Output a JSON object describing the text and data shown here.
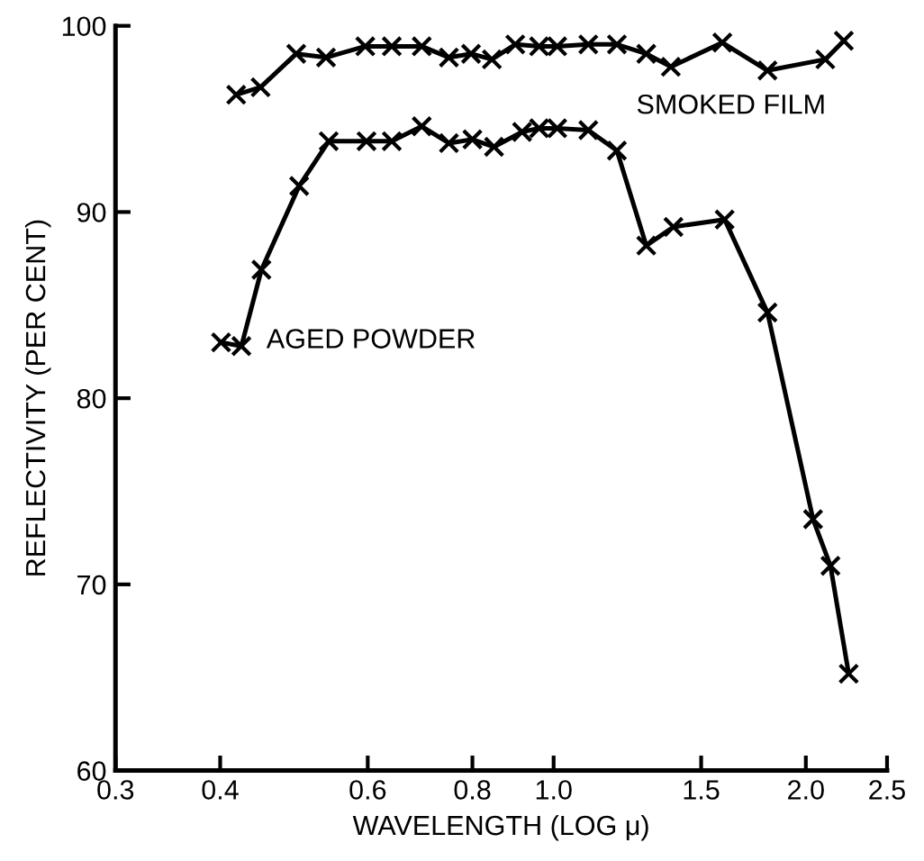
{
  "chart_data": {
    "type": "line",
    "xlabel": "WAVELENGTH (LOG μ)",
    "ylabel": "REFLECTIVITY (PER CENT)",
    "log": "x",
    "xlim": [
      0.3,
      2.5
    ],
    "ylim": [
      60,
      100
    ],
    "xticks": [
      0.3,
      0.4,
      0.6,
      0.8,
      {
        "value": 1.0,
        "label": "1.0"
      },
      1.5,
      {
        "value": 2.0,
        "label": "2.0"
      },
      2.5
    ],
    "yticks": [
      60,
      70,
      80,
      90,
      100
    ],
    "grid": false,
    "legend": false,
    "marker": "cross",
    "line_style": "solid",
    "series": [
      {
        "name": "SMOKED FILM",
        "color": "#000000",
        "x": [
          0.418,
          0.447,
          0.493,
          0.535,
          0.596,
          0.641,
          0.696,
          0.75,
          0.797,
          0.844,
          0.9,
          0.961,
          1.01,
          1.1,
          1.19,
          1.29,
          1.38,
          1.59,
          1.8,
          2.11,
          2.22
        ],
        "values": [
          96.3,
          96.7,
          98.5,
          98.3,
          98.9,
          98.9,
          98.9,
          98.3,
          98.5,
          98.2,
          99.0,
          98.9,
          98.9,
          99.0,
          99.0,
          98.5,
          97.8,
          99.1,
          97.6,
          98.2,
          99.2
        ]
      },
      {
        "name": "AGED POWDER",
        "color": "#000000",
        "x": [
          0.401,
          0.424,
          0.448,
          0.497,
          0.539,
          0.598,
          0.641,
          0.696,
          0.75,
          0.8,
          0.849,
          0.917,
          0.961,
          1.01,
          1.1,
          1.19,
          1.29,
          1.39,
          1.6,
          1.8,
          2.04,
          2.14,
          2.25
        ],
        "values": [
          83.0,
          82.8,
          86.9,
          91.4,
          93.8,
          93.8,
          93.8,
          94.6,
          93.7,
          93.9,
          93.5,
          94.3,
          94.5,
          94.5,
          94.4,
          93.3,
          88.2,
          89.2,
          89.6,
          84.6,
          73.5,
          71.0,
          65.2
        ]
      }
    ]
  }
}
